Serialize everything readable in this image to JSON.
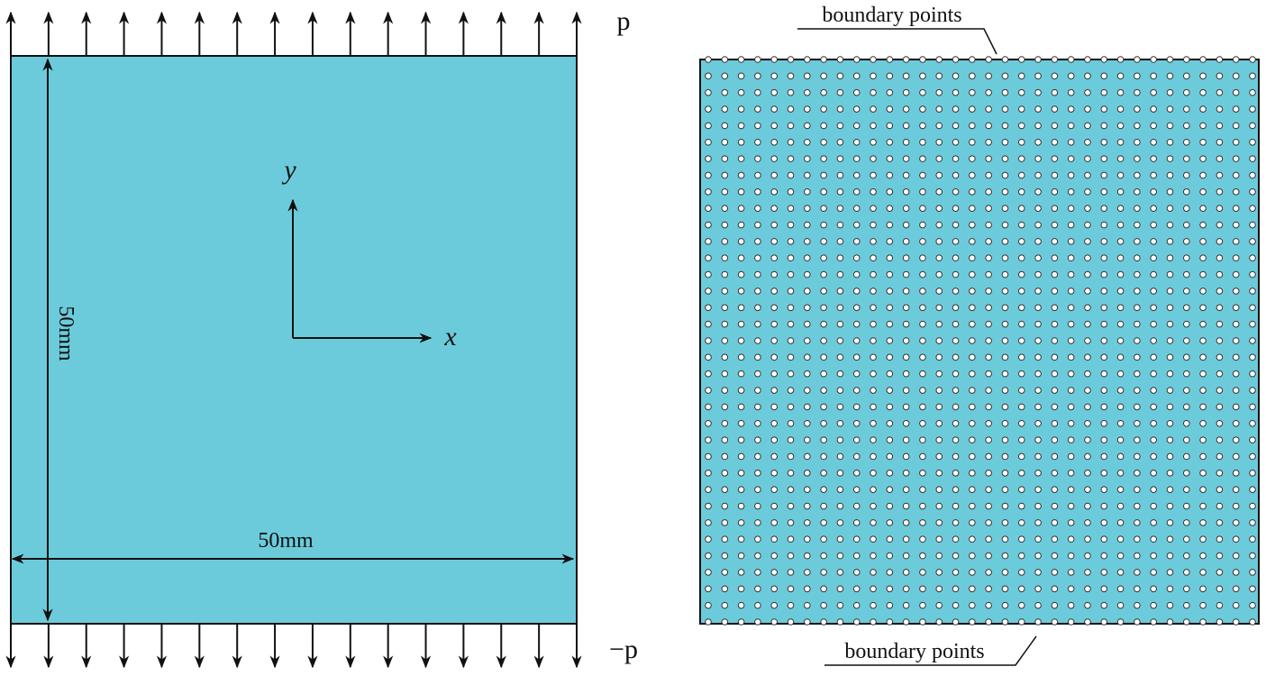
{
  "left_panel": {
    "load_top": "p",
    "load_bottom": "−p",
    "axis_y": "y",
    "axis_x": "x",
    "height_dimension": "50mm",
    "width_dimension": "50mm"
  },
  "right_panel": {
    "annotation_top": "boundary points",
    "annotation_bottom": "boundary points"
  }
}
